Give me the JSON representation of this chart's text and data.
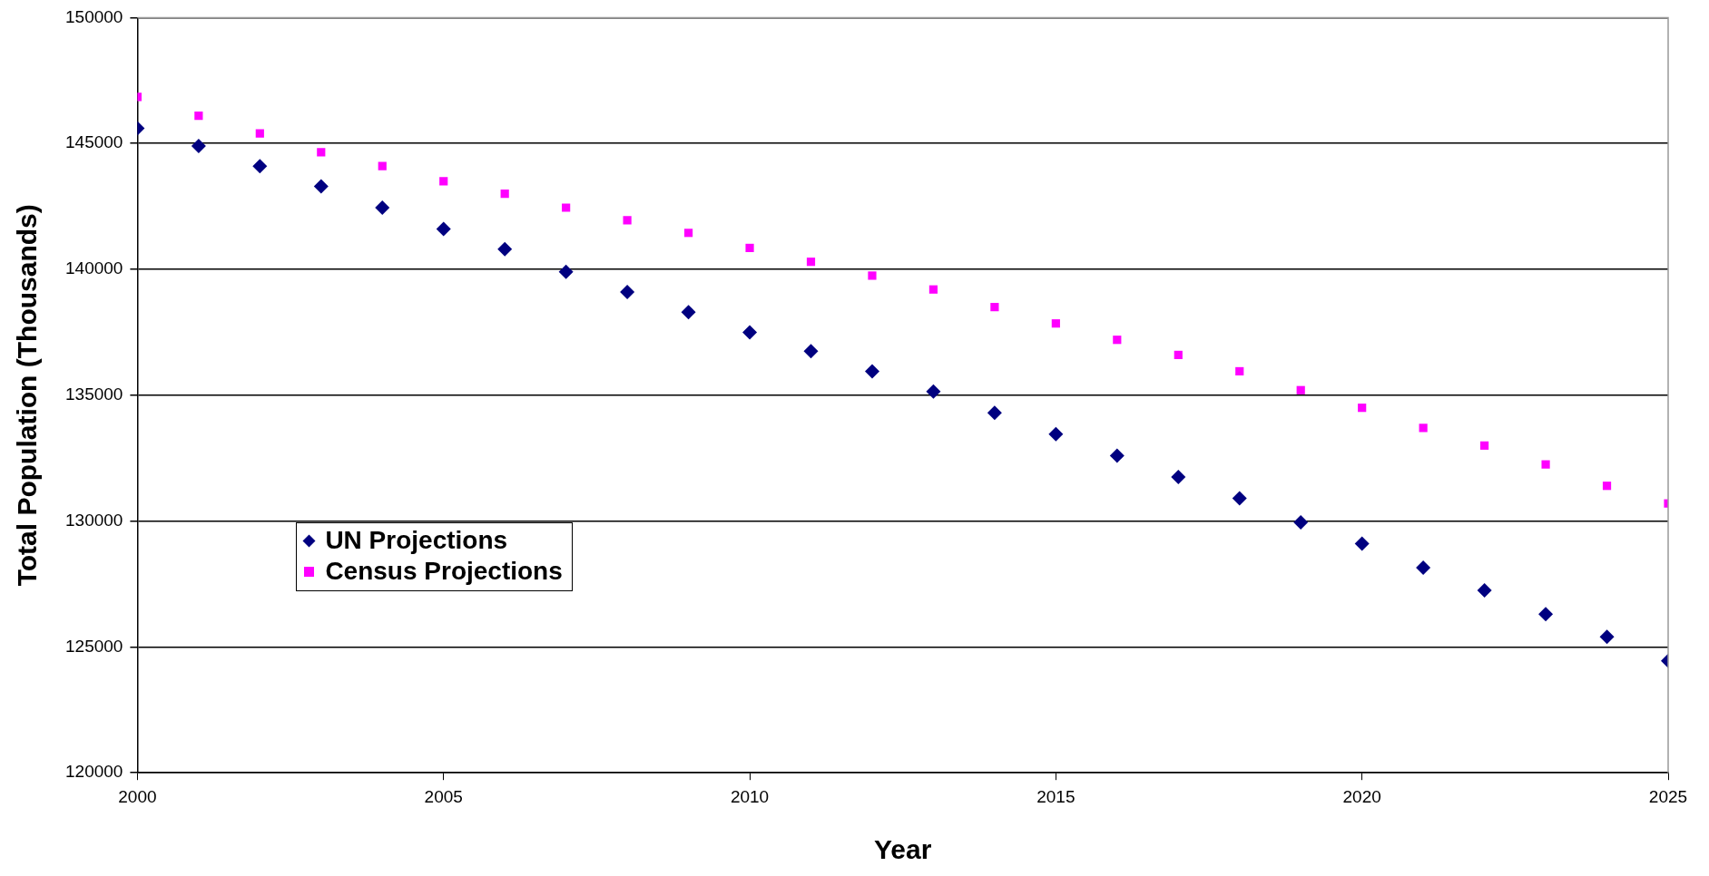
{
  "chart_data": {
    "type": "scatter",
    "xlabel": "Year",
    "ylabel": "Total Population (Thousands)",
    "x": [
      2000,
      2001,
      2002,
      2003,
      2004,
      2005,
      2006,
      2007,
      2008,
      2009,
      2010,
      2011,
      2012,
      2013,
      2014,
      2015,
      2016,
      2017,
      2018,
      2019,
      2020,
      2021,
      2022,
      2023,
      2024,
      2025
    ],
    "series": [
      {
        "name": "UN Projections",
        "color": "#000080",
        "marker": "diamond",
        "values": [
          145600,
          144900,
          144100,
          143300,
          142450,
          141600,
          140800,
          139900,
          139100,
          138300,
          137500,
          136750,
          135950,
          135150,
          134300,
          133450,
          132600,
          131750,
          130900,
          129950,
          129100,
          128150,
          127250,
          126300,
          125400,
          124450
        ]
      },
      {
        "name": "Census Projections",
        "color": "#ff00ff",
        "marker": "square",
        "values": [
          146850,
          146100,
          145400,
          144650,
          144100,
          143500,
          143000,
          142450,
          141950,
          141450,
          140850,
          140300,
          139750,
          139200,
          138500,
          137850,
          137200,
          136600,
          135950,
          135200,
          134500,
          133700,
          133000,
          132250,
          131400,
          130700
        ]
      }
    ],
    "xlim": [
      2000,
      2025
    ],
    "xticks": [
      2000,
      2005,
      2010,
      2015,
      2020,
      2025
    ],
    "ylim": [
      120000,
      150000
    ],
    "yticks": [
      120000,
      125000,
      130000,
      135000,
      140000,
      145000,
      150000
    ],
    "grid": "y",
    "legend": "bottom left"
  }
}
